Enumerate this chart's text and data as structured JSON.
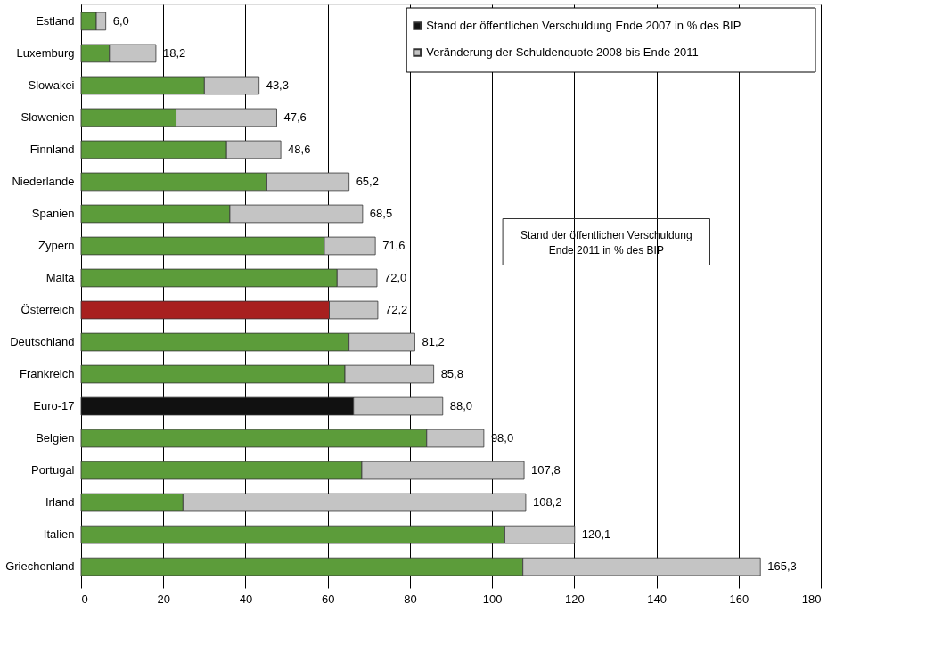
{
  "chart_data": {
    "type": "bar",
    "orientation": "horizontal",
    "stacked": true,
    "categories": [
      "Estland",
      "Luxemburg",
      "Slowakei",
      "Slowenien",
      "Finnland",
      "Niederlande",
      "Spanien",
      "Zypern",
      "Malta",
      "Österreich",
      "Deutschland",
      "Frankreich",
      "Euro-17",
      "Belgien",
      "Portugal",
      "Irland",
      "Italien",
      "Griechenland"
    ],
    "series": [
      {
        "name": "Stand der öffentlichen Verschuldung Ende 2007 in % des BIP",
        "color": "#111111",
        "colors": [
          "#5c9c3a",
          "#5c9c3a",
          "#5c9c3a",
          "#5c9c3a",
          "#5c9c3a",
          "#5c9c3a",
          "#5c9c3a",
          "#5c9c3a",
          "#5c9c3a",
          "#a8201f",
          "#5c9c3a",
          "#5c9c3a",
          "#111111",
          "#5c9c3a",
          "#5c9c3a",
          "#5c9c3a",
          "#5c9c3a",
          "#5c9c3a"
        ],
        "values": [
          3.7,
          6.9,
          30.0,
          23.1,
          35.4,
          45.2,
          36.2,
          59.2,
          62.3,
          60.4,
          65.2,
          64.2,
          66.3,
          84.1,
          68.3,
          24.8,
          103.1,
          107.5
        ]
      },
      {
        "name": "Veränderung der Schuldenquote 2008 bis Ende 2011",
        "color": "#c4c4c4",
        "values": [
          2.3,
          11.3,
          13.3,
          24.5,
          13.2,
          20.0,
          32.3,
          12.4,
          9.7,
          11.8,
          16.0,
          21.6,
          21.7,
          13.9,
          39.5,
          83.4,
          17.0,
          57.8
        ]
      }
    ],
    "totals": [
      "6,0",
      "18,2",
      "43,3",
      "47,6",
      "48,6",
      "65,2",
      "68,5",
      "71,6",
      "72,0",
      "72,2",
      "81,2",
      "85,8",
      "88,0",
      "98,0",
      "107,8",
      "108,2",
      "120,1",
      "165,3"
    ],
    "xlim": [
      0,
      180
    ],
    "xticks": [
      0,
      20,
      40,
      60,
      80,
      100,
      120,
      140,
      160,
      180
    ],
    "grid": "x",
    "legend": "top right",
    "annotations": [
      "Stand der öffentlichen Verschuldung Ende 2011 in % des BIP"
    ]
  }
}
